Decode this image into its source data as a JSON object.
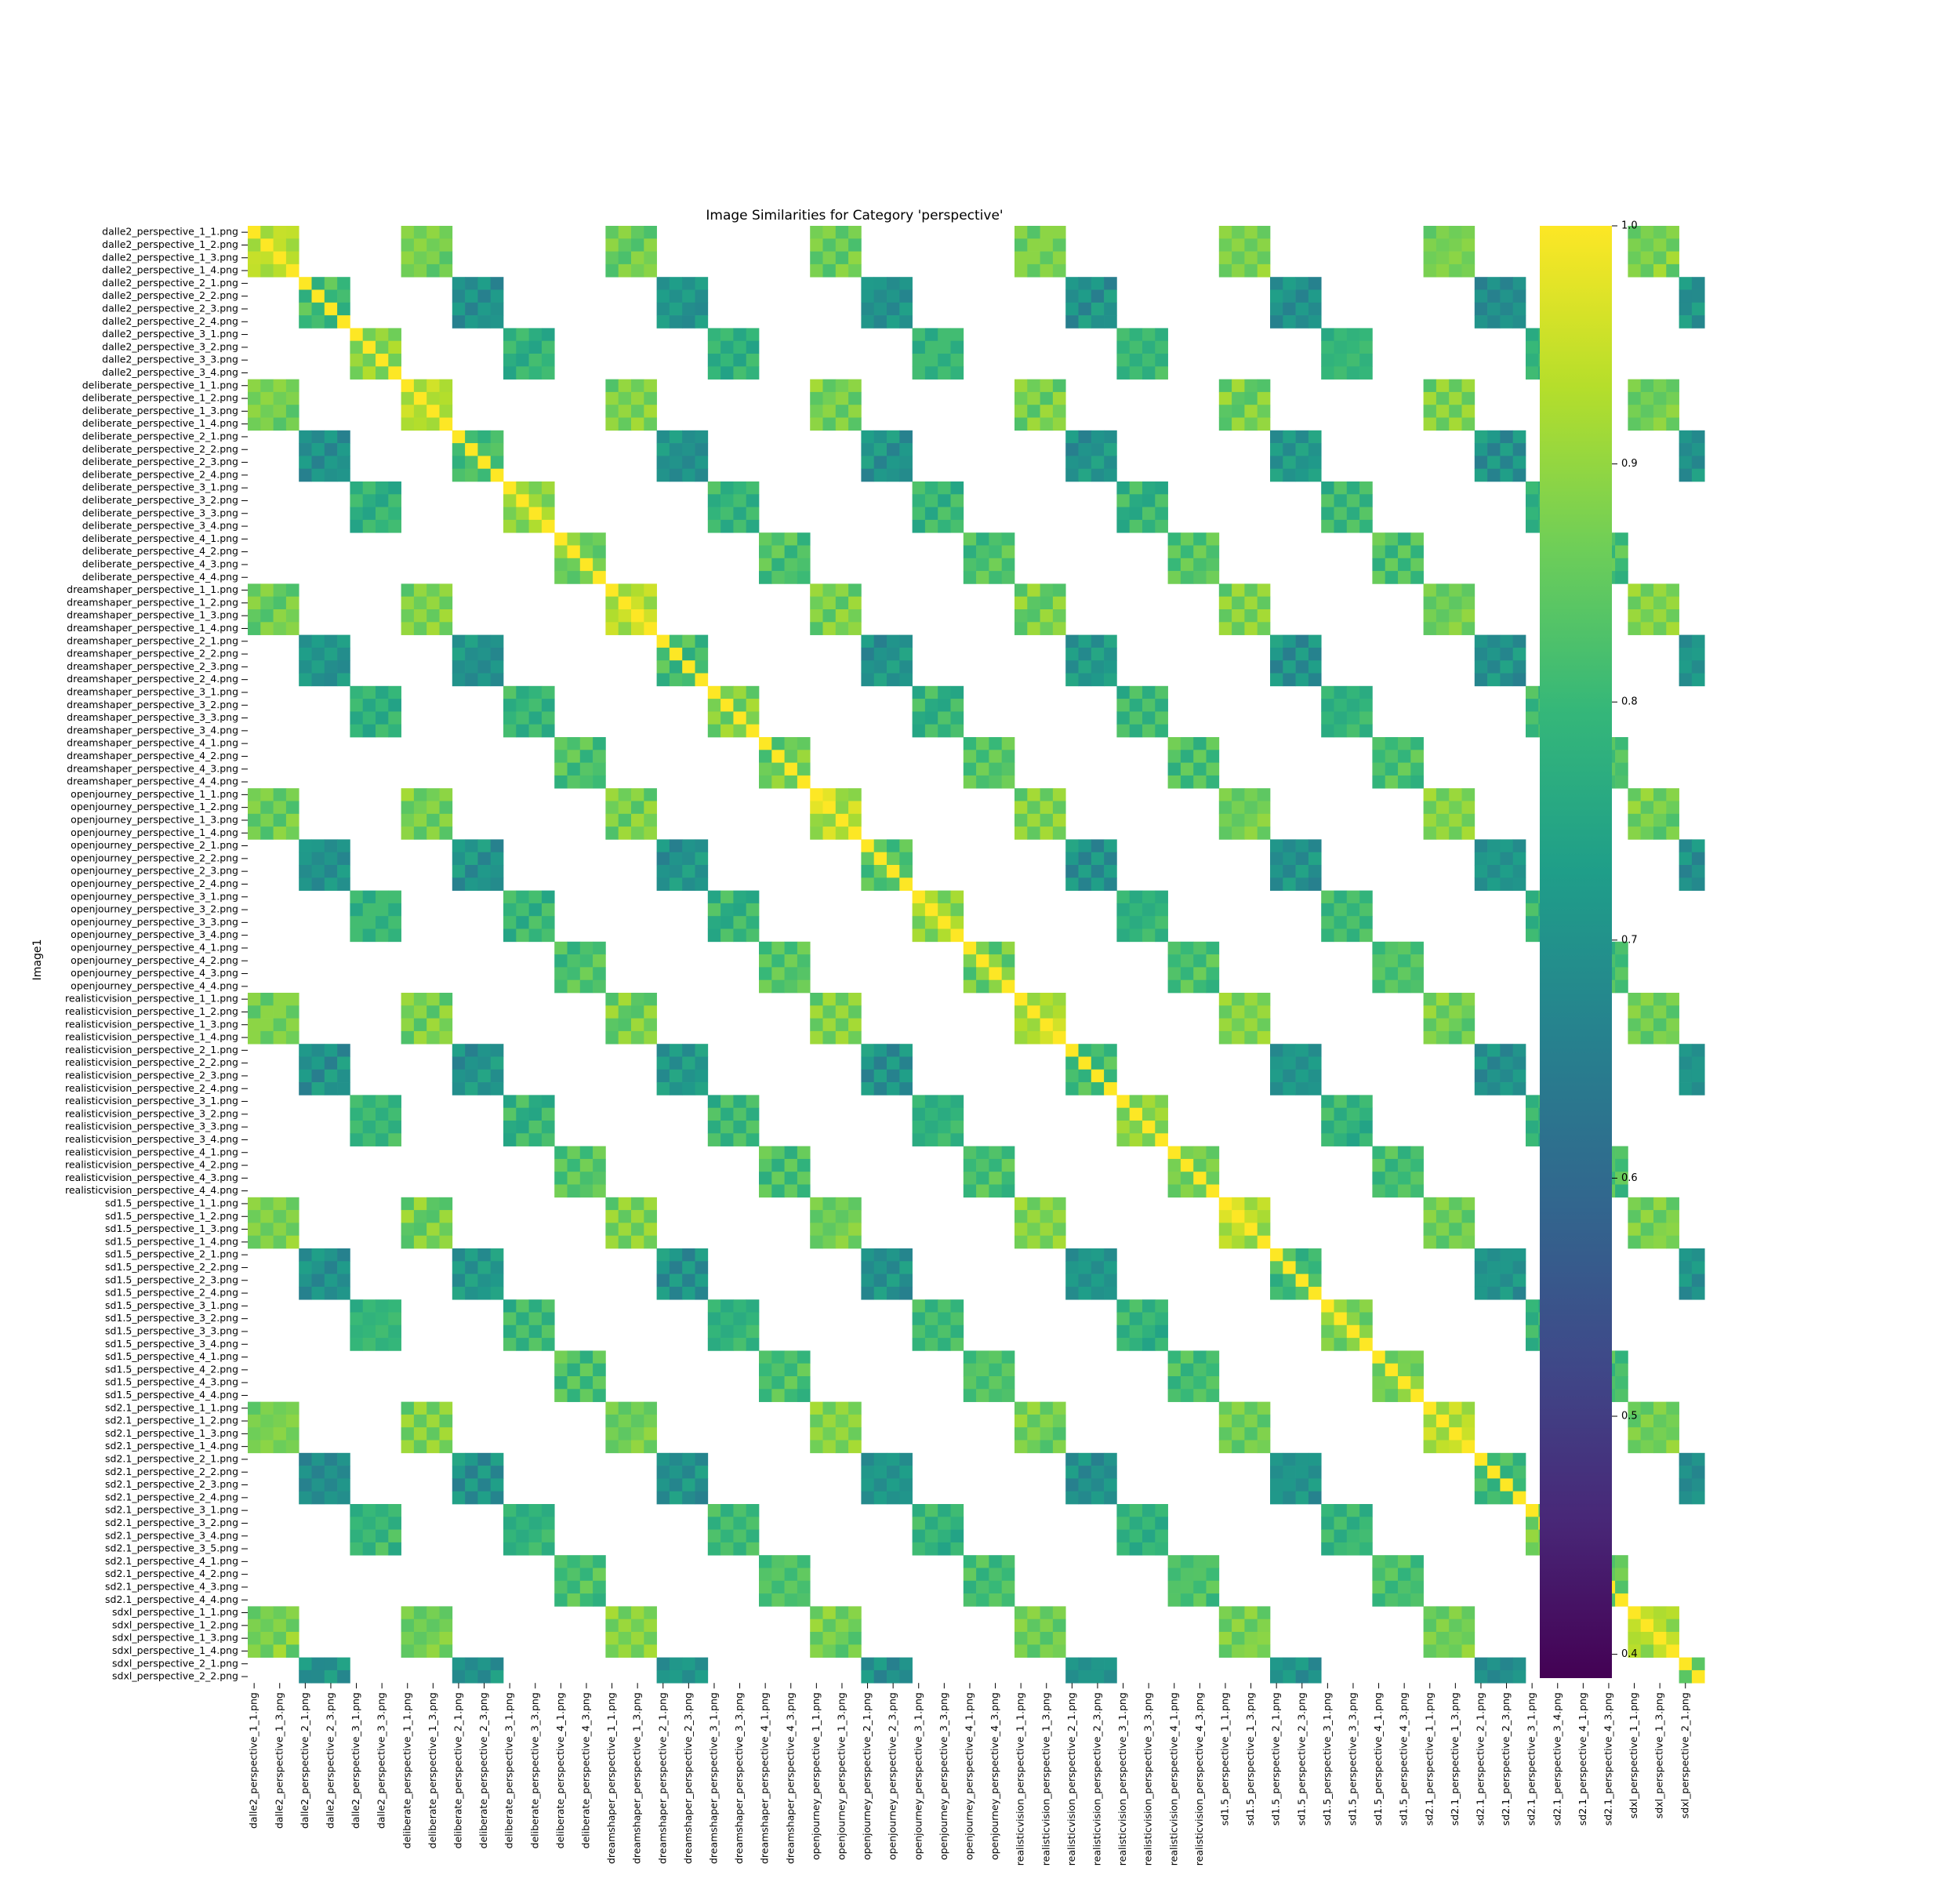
{
  "chart_data": {
    "type": "heatmap",
    "title": "Image Similarities for Category 'perspective'",
    "ylabel": "Image1",
    "xlabel": "",
    "rows": [
      "dalle2_perspective_1_1.png",
      "dalle2_perspective_1_2.png",
      "dalle2_perspective_1_3.png",
      "dalle2_perspective_1_4.png",
      "dalle2_perspective_2_1.png",
      "dalle2_perspective_2_2.png",
      "dalle2_perspective_2_3.png",
      "dalle2_perspective_2_4.png",
      "dalle2_perspective_3_1.png",
      "dalle2_perspective_3_2.png",
      "dalle2_perspective_3_3.png",
      "dalle2_perspective_3_4.png",
      "deliberate_perspective_1_1.png",
      "deliberate_perspective_1_2.png",
      "deliberate_perspective_1_3.png",
      "deliberate_perspective_1_4.png",
      "deliberate_perspective_2_1.png",
      "deliberate_perspective_2_2.png",
      "deliberate_perspective_2_3.png",
      "deliberate_perspective_2_4.png",
      "deliberate_perspective_3_1.png",
      "deliberate_perspective_3_2.png",
      "deliberate_perspective_3_3.png",
      "deliberate_perspective_3_4.png",
      "deliberate_perspective_4_1.png",
      "deliberate_perspective_4_2.png",
      "deliberate_perspective_4_3.png",
      "deliberate_perspective_4_4.png",
      "dreamshaper_perspective_1_1.png",
      "dreamshaper_perspective_1_2.png",
      "dreamshaper_perspective_1_3.png",
      "dreamshaper_perspective_1_4.png",
      "dreamshaper_perspective_2_1.png",
      "dreamshaper_perspective_2_2.png",
      "dreamshaper_perspective_2_3.png",
      "dreamshaper_perspective_2_4.png",
      "dreamshaper_perspective_3_1.png",
      "dreamshaper_perspective_3_2.png",
      "dreamshaper_perspective_3_3.png",
      "dreamshaper_perspective_3_4.png",
      "dreamshaper_perspective_4_1.png",
      "dreamshaper_perspective_4_2.png",
      "dreamshaper_perspective_4_3.png",
      "dreamshaper_perspective_4_4.png",
      "openjourney_perspective_1_1.png",
      "openjourney_perspective_1_2.png",
      "openjourney_perspective_1_3.png",
      "openjourney_perspective_1_4.png",
      "openjourney_perspective_2_1.png",
      "openjourney_perspective_2_2.png",
      "openjourney_perspective_2_3.png",
      "openjourney_perspective_2_4.png",
      "openjourney_perspective_3_1.png",
      "openjourney_perspective_3_2.png",
      "openjourney_perspective_3_3.png",
      "openjourney_perspective_3_4.png",
      "openjourney_perspective_4_1.png",
      "openjourney_perspective_4_2.png",
      "openjourney_perspective_4_3.png",
      "openjourney_perspective_4_4.png",
      "realisticvision_perspective_1_1.png",
      "realisticvision_perspective_1_2.png",
      "realisticvision_perspective_1_3.png",
      "realisticvision_perspective_1_4.png",
      "realisticvision_perspective_2_1.png",
      "realisticvision_perspective_2_2.png",
      "realisticvision_perspective_2_3.png",
      "realisticvision_perspective_2_4.png",
      "realisticvision_perspective_3_1.png",
      "realisticvision_perspective_3_2.png",
      "realisticvision_perspective_3_3.png",
      "realisticvision_perspective_3_4.png",
      "realisticvision_perspective_4_1.png",
      "realisticvision_perspective_4_2.png",
      "realisticvision_perspective_4_3.png",
      "realisticvision_perspective_4_4.png",
      "sd1.5_perspective_1_1.png",
      "sd1.5_perspective_1_2.png",
      "sd1.5_perspective_1_3.png",
      "sd1.5_perspective_1_4.png",
      "sd1.5_perspective_2_1.png",
      "sd1.5_perspective_2_2.png",
      "sd1.5_perspective_2_3.png",
      "sd1.5_perspective_2_4.png",
      "sd1.5_perspective_3_1.png",
      "sd1.5_perspective_3_2.png",
      "sd1.5_perspective_3_3.png",
      "sd1.5_perspective_3_4.png",
      "sd1.5_perspective_4_1.png",
      "sd1.5_perspective_4_2.png",
      "sd1.5_perspective_4_3.png",
      "sd1.5_perspective_4_4.png",
      "sd2.1_perspective_1_1.png",
      "sd2.1_perspective_1_2.png",
      "sd2.1_perspective_1_3.png",
      "sd2.1_perspective_1_4.png",
      "sd2.1_perspective_2_1.png",
      "sd2.1_perspective_2_2.png",
      "sd2.1_perspective_2_3.png",
      "sd2.1_perspective_2_4.png",
      "sd2.1_perspective_3_1.png",
      "sd2.1_perspective_3_2.png",
      "sd2.1_perspective_3_4.png",
      "sd2.1_perspective_3_5.png",
      "sd2.1_perspective_4_1.png",
      "sd2.1_perspective_4_2.png",
      "sd2.1_perspective_4_3.png",
      "sd2.1_perspective_4_4.png",
      "sdxl_perspective_1_1.png",
      "sdxl_perspective_1_2.png",
      "sdxl_perspective_1_3.png",
      "sdxl_perspective_1_4.png",
      "sdxl_perspective_2_1.png",
      "sdxl_perspective_2_2.png"
    ],
    "columns_labeled": [
      "dalle2_perspective_1_1.png",
      "dalle2_perspective_1_3.png",
      "dalle2_perspective_2_1.png",
      "dalle2_perspective_2_3.png",
      "dalle2_perspective_3_1.png",
      "dalle2_perspective_3_3.png",
      "deliberate_perspective_1_1.png",
      "deliberate_perspective_1_3.png",
      "deliberate_perspective_2_1.png",
      "deliberate_perspective_2_3.png",
      "deliberate_perspective_3_1.png",
      "deliberate_perspective_3_3.png",
      "deliberate_perspective_4_1.png",
      "deliberate_perspective_4_3.png",
      "dreamshaper_perspective_1_1.png",
      "dreamshaper_perspective_1_3.png",
      "dreamshaper_perspective_2_1.png",
      "dreamshaper_perspective_2_3.png",
      "dreamshaper_perspective_3_1.png",
      "dreamshaper_perspective_3_3.png",
      "dreamshaper_perspective_4_1.png",
      "dreamshaper_perspective_4_3.png",
      "openjourney_perspective_1_1.png",
      "openjourney_perspective_1_3.png",
      "openjourney_perspective_2_1.png",
      "openjourney_perspective_2_3.png",
      "openjourney_perspective_3_1.png",
      "openjourney_perspective_3_3.png",
      "openjourney_perspective_4_1.png",
      "openjourney_perspective_4_3.png",
      "realisticvision_perspective_1_1.png",
      "realisticvision_perspective_1_3.png",
      "realisticvision_perspective_2_1.png",
      "realisticvision_perspective_2_3.png",
      "realisticvision_perspective_3_1.png",
      "realisticvision_perspective_3_3.png",
      "realisticvision_perspective_4_1.png",
      "realisticvision_perspective_4_3.png",
      "sd1.5_perspective_1_1.png",
      "sd1.5_perspective_1_3.png",
      "sd1.5_perspective_2_1.png",
      "sd1.5_perspective_2_3.png",
      "sd1.5_perspective_3_1.png",
      "sd1.5_perspective_3_3.png",
      "sd1.5_perspective_4_1.png",
      "sd1.5_perspective_4_3.png",
      "sd2.1_perspective_1_1.png",
      "sd2.1_perspective_1_3.png",
      "sd2.1_perspective_2_1.png",
      "sd2.1_perspective_2_3.png",
      "sd2.1_perspective_3_1.png",
      "sd2.1_perspective_3_4.png",
      "sd2.1_perspective_4_1.png",
      "sd2.1_perspective_4_3.png",
      "sdxl_perspective_1_1.png",
      "sdxl_perspective_1_3.png",
      "sdxl_perspective_2_1.png"
    ],
    "groups": [
      {
        "model": 0,
        "set": 1,
        "size": 4
      },
      {
        "model": 0,
        "set": 2,
        "size": 4
      },
      {
        "model": 0,
        "set": 3,
        "size": 4
      },
      {
        "model": 1,
        "set": 1,
        "size": 4
      },
      {
        "model": 1,
        "set": 2,
        "size": 4
      },
      {
        "model": 1,
        "set": 3,
        "size": 4
      },
      {
        "model": 1,
        "set": 4,
        "size": 4
      },
      {
        "model": 2,
        "set": 1,
        "size": 4
      },
      {
        "model": 2,
        "set": 2,
        "size": 4
      },
      {
        "model": 2,
        "set": 3,
        "size": 4
      },
      {
        "model": 2,
        "set": 4,
        "size": 4
      },
      {
        "model": 3,
        "set": 1,
        "size": 4
      },
      {
        "model": 3,
        "set": 2,
        "size": 4
      },
      {
        "model": 3,
        "set": 3,
        "size": 4
      },
      {
        "model": 3,
        "set": 4,
        "size": 4
      },
      {
        "model": 4,
        "set": 1,
        "size": 4
      },
      {
        "model": 4,
        "set": 2,
        "size": 4
      },
      {
        "model": 4,
        "set": 3,
        "size": 4
      },
      {
        "model": 4,
        "set": 4,
        "size": 4
      },
      {
        "model": 5,
        "set": 1,
        "size": 4
      },
      {
        "model": 5,
        "set": 2,
        "size": 4
      },
      {
        "model": 5,
        "set": 3,
        "size": 4
      },
      {
        "model": 5,
        "set": 4,
        "size": 4
      },
      {
        "model": 6,
        "set": 1,
        "size": 4
      },
      {
        "model": 6,
        "set": 2,
        "size": 4
      },
      {
        "model": 6,
        "set": 3,
        "size": 4
      },
      {
        "model": 6,
        "set": 4,
        "size": 4
      },
      {
        "model": 7,
        "set": 1,
        "size": 4
      },
      {
        "model": 7,
        "set": 2,
        "size": 2
      }
    ],
    "similarity_by_set": {
      "1": {
        "same_group": 0.93,
        "cross_model": 0.87
      },
      "2": {
        "same_group": 0.81,
        "cross_model": 0.7
      },
      "3": {
        "same_group": 0.88,
        "cross_model": 0.79
      },
      "4": {
        "same_group": 0.86,
        "cross_model": 0.82
      }
    },
    "diagonal_value": 1.0,
    "missing_pairs": "pairs from different sets are blank",
    "colorscale": "viridis",
    "colorbar": {
      "min": 0.39,
      "max": 1.0,
      "ticks": [
        0.4,
        0.5,
        0.6,
        0.7,
        0.8,
        0.9,
        1.0
      ],
      "tick_labels": [
        "0.4",
        "0.5",
        "0.6",
        "0.7",
        "0.8",
        "0.9",
        "1.0"
      ]
    }
  }
}
